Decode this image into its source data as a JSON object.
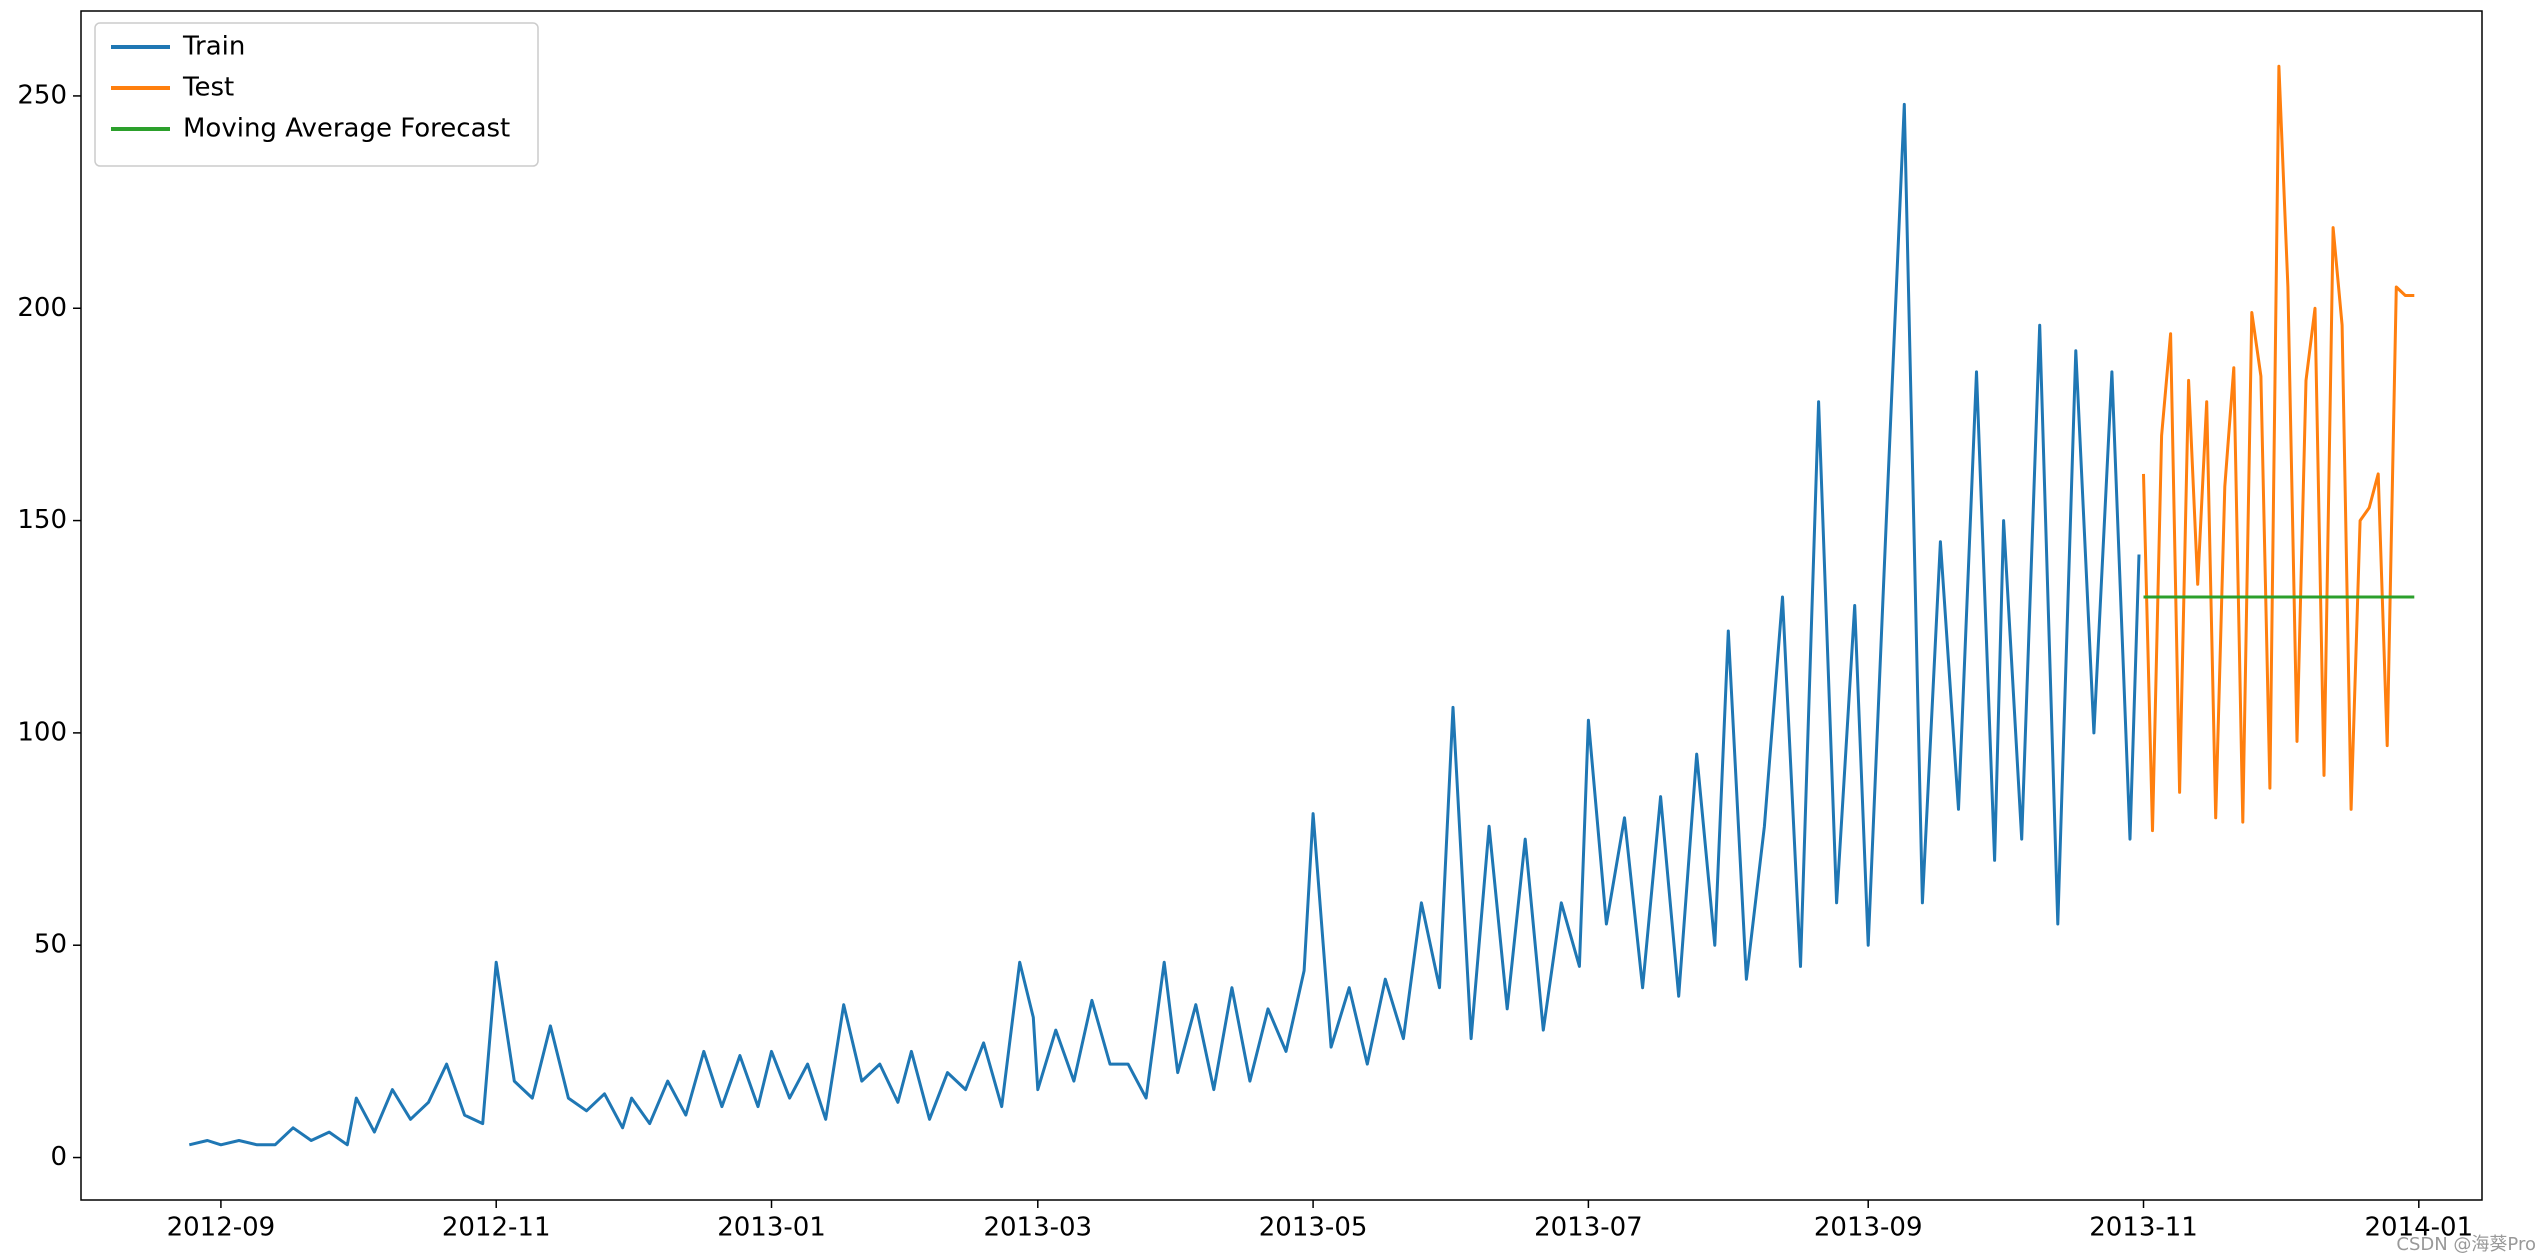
{
  "chart_data": {
    "type": "line",
    "xlim": [
      "2012-08-01",
      "2014-01-15"
    ],
    "ylim": [
      -10,
      270
    ],
    "xticks": [
      {
        "value": "2012-09-01",
        "label": "2012-09"
      },
      {
        "value": "2012-11-01",
        "label": "2012-11"
      },
      {
        "value": "2013-01-01",
        "label": "2013-01"
      },
      {
        "value": "2013-03-01",
        "label": "2013-03"
      },
      {
        "value": "2013-05-01",
        "label": "2013-05"
      },
      {
        "value": "2013-07-01",
        "label": "2013-07"
      },
      {
        "value": "2013-09-01",
        "label": "2013-09"
      },
      {
        "value": "2013-11-01",
        "label": "2013-11"
      },
      {
        "value": "2014-01-01",
        "label": "2014-01"
      }
    ],
    "yticks": [
      0,
      50,
      100,
      150,
      200,
      250
    ],
    "grid": false,
    "legend": "upper left",
    "watermark": "CSDN @海葵Pro",
    "series": [
      {
        "name": "Train",
        "color": "#1f77b4",
        "x": [
          "2012-08-25",
          "2012-08-29",
          "2012-09-01",
          "2012-09-05",
          "2012-09-09",
          "2012-09-13",
          "2012-09-17",
          "2012-09-21",
          "2012-09-25",
          "2012-09-29",
          "2012-10-01",
          "2012-10-05",
          "2012-10-09",
          "2012-10-13",
          "2012-10-17",
          "2012-10-21",
          "2012-10-25",
          "2012-10-29",
          "2012-11-01",
          "2012-11-05",
          "2012-11-09",
          "2012-11-13",
          "2012-11-17",
          "2012-11-21",
          "2012-11-25",
          "2012-11-29",
          "2012-12-01",
          "2012-12-05",
          "2012-12-09",
          "2012-12-13",
          "2012-12-17",
          "2012-12-21",
          "2012-12-25",
          "2012-12-29",
          "2013-01-01",
          "2013-01-05",
          "2013-01-09",
          "2013-01-13",
          "2013-01-17",
          "2013-01-21",
          "2013-01-25",
          "2013-01-29",
          "2013-02-01",
          "2013-02-05",
          "2013-02-09",
          "2013-02-13",
          "2013-02-17",
          "2013-02-21",
          "2013-02-25",
          "2013-02-28",
          "2013-03-01",
          "2013-03-05",
          "2013-03-09",
          "2013-03-13",
          "2013-03-17",
          "2013-03-21",
          "2013-03-25",
          "2013-03-29",
          "2013-04-01",
          "2013-04-05",
          "2013-04-09",
          "2013-04-13",
          "2013-04-17",
          "2013-04-21",
          "2013-04-25",
          "2013-04-29",
          "2013-05-01",
          "2013-05-05",
          "2013-05-09",
          "2013-05-13",
          "2013-05-17",
          "2013-05-21",
          "2013-05-25",
          "2013-05-29",
          "2013-06-01",
          "2013-06-05",
          "2013-06-09",
          "2013-06-13",
          "2013-06-17",
          "2013-06-21",
          "2013-06-25",
          "2013-06-29",
          "2013-07-01",
          "2013-07-05",
          "2013-07-09",
          "2013-07-13",
          "2013-07-17",
          "2013-07-21",
          "2013-07-25",
          "2013-07-29",
          "2013-08-01",
          "2013-08-05",
          "2013-08-09",
          "2013-08-13",
          "2013-08-17",
          "2013-08-21",
          "2013-08-25",
          "2013-08-29",
          "2013-09-01",
          "2013-09-05",
          "2013-09-09",
          "2013-09-13",
          "2013-09-17",
          "2013-09-21",
          "2013-09-25",
          "2013-09-29",
          "2013-10-01",
          "2013-10-05",
          "2013-10-09",
          "2013-10-13",
          "2013-10-17",
          "2013-10-21",
          "2013-10-25",
          "2013-10-29",
          "2013-10-31"
        ],
        "values": [
          3,
          4,
          3,
          4,
          3,
          3,
          7,
          4,
          6,
          3,
          14,
          6,
          16,
          9,
          13,
          22,
          10,
          8,
          46,
          18,
          14,
          31,
          14,
          11,
          15,
          7,
          14,
          8,
          18,
          10,
          25,
          12,
          24,
          12,
          25,
          14,
          22,
          9,
          36,
          18,
          22,
          13,
          25,
          9,
          20,
          16,
          27,
          12,
          46,
          33,
          16,
          30,
          18,
          37,
          22,
          22,
          14,
          46,
          20,
          36,
          16,
          40,
          18,
          35,
          25,
          44,
          81,
          26,
          40,
          22,
          42,
          28,
          60,
          40,
          106,
          28,
          78,
          35,
          75,
          30,
          60,
          45,
          103,
          55,
          80,
          40,
          85,
          38,
          95,
          50,
          124,
          42,
          78,
          132,
          45,
          178,
          60,
          130,
          50,
          150,
          248,
          60,
          145,
          82,
          185,
          70,
          150,
          75,
          196,
          55,
          190,
          100,
          185,
          75,
          142
        ]
      },
      {
        "name": "Test",
        "color": "#ff7f0e",
        "x": [
          "2013-11-01",
          "2013-11-03",
          "2013-11-05",
          "2013-11-07",
          "2013-11-09",
          "2013-11-11",
          "2013-11-13",
          "2013-11-15",
          "2013-11-17",
          "2013-11-19",
          "2013-11-21",
          "2013-11-23",
          "2013-11-25",
          "2013-11-27",
          "2013-11-29",
          "2013-12-01",
          "2013-12-03",
          "2013-12-05",
          "2013-12-07",
          "2013-12-09",
          "2013-12-11",
          "2013-12-13",
          "2013-12-15",
          "2013-12-17",
          "2013-12-19",
          "2013-12-21",
          "2013-12-23",
          "2013-12-25",
          "2013-12-27",
          "2013-12-29",
          "2013-12-31"
        ],
        "values": [
          161,
          77,
          170,
          194,
          86,
          183,
          135,
          178,
          80,
          158,
          186,
          79,
          199,
          184,
          87,
          257,
          205,
          98,
          183,
          200,
          90,
          219,
          196,
          82,
          150,
          153,
          161,
          97,
          205,
          203,
          203
        ]
      },
      {
        "name": "Moving Average Forecast",
        "color": "#2ca02c",
        "x": [
          "2013-11-01",
          "2013-12-31"
        ],
        "values": [
          132,
          132
        ]
      }
    ]
  }
}
